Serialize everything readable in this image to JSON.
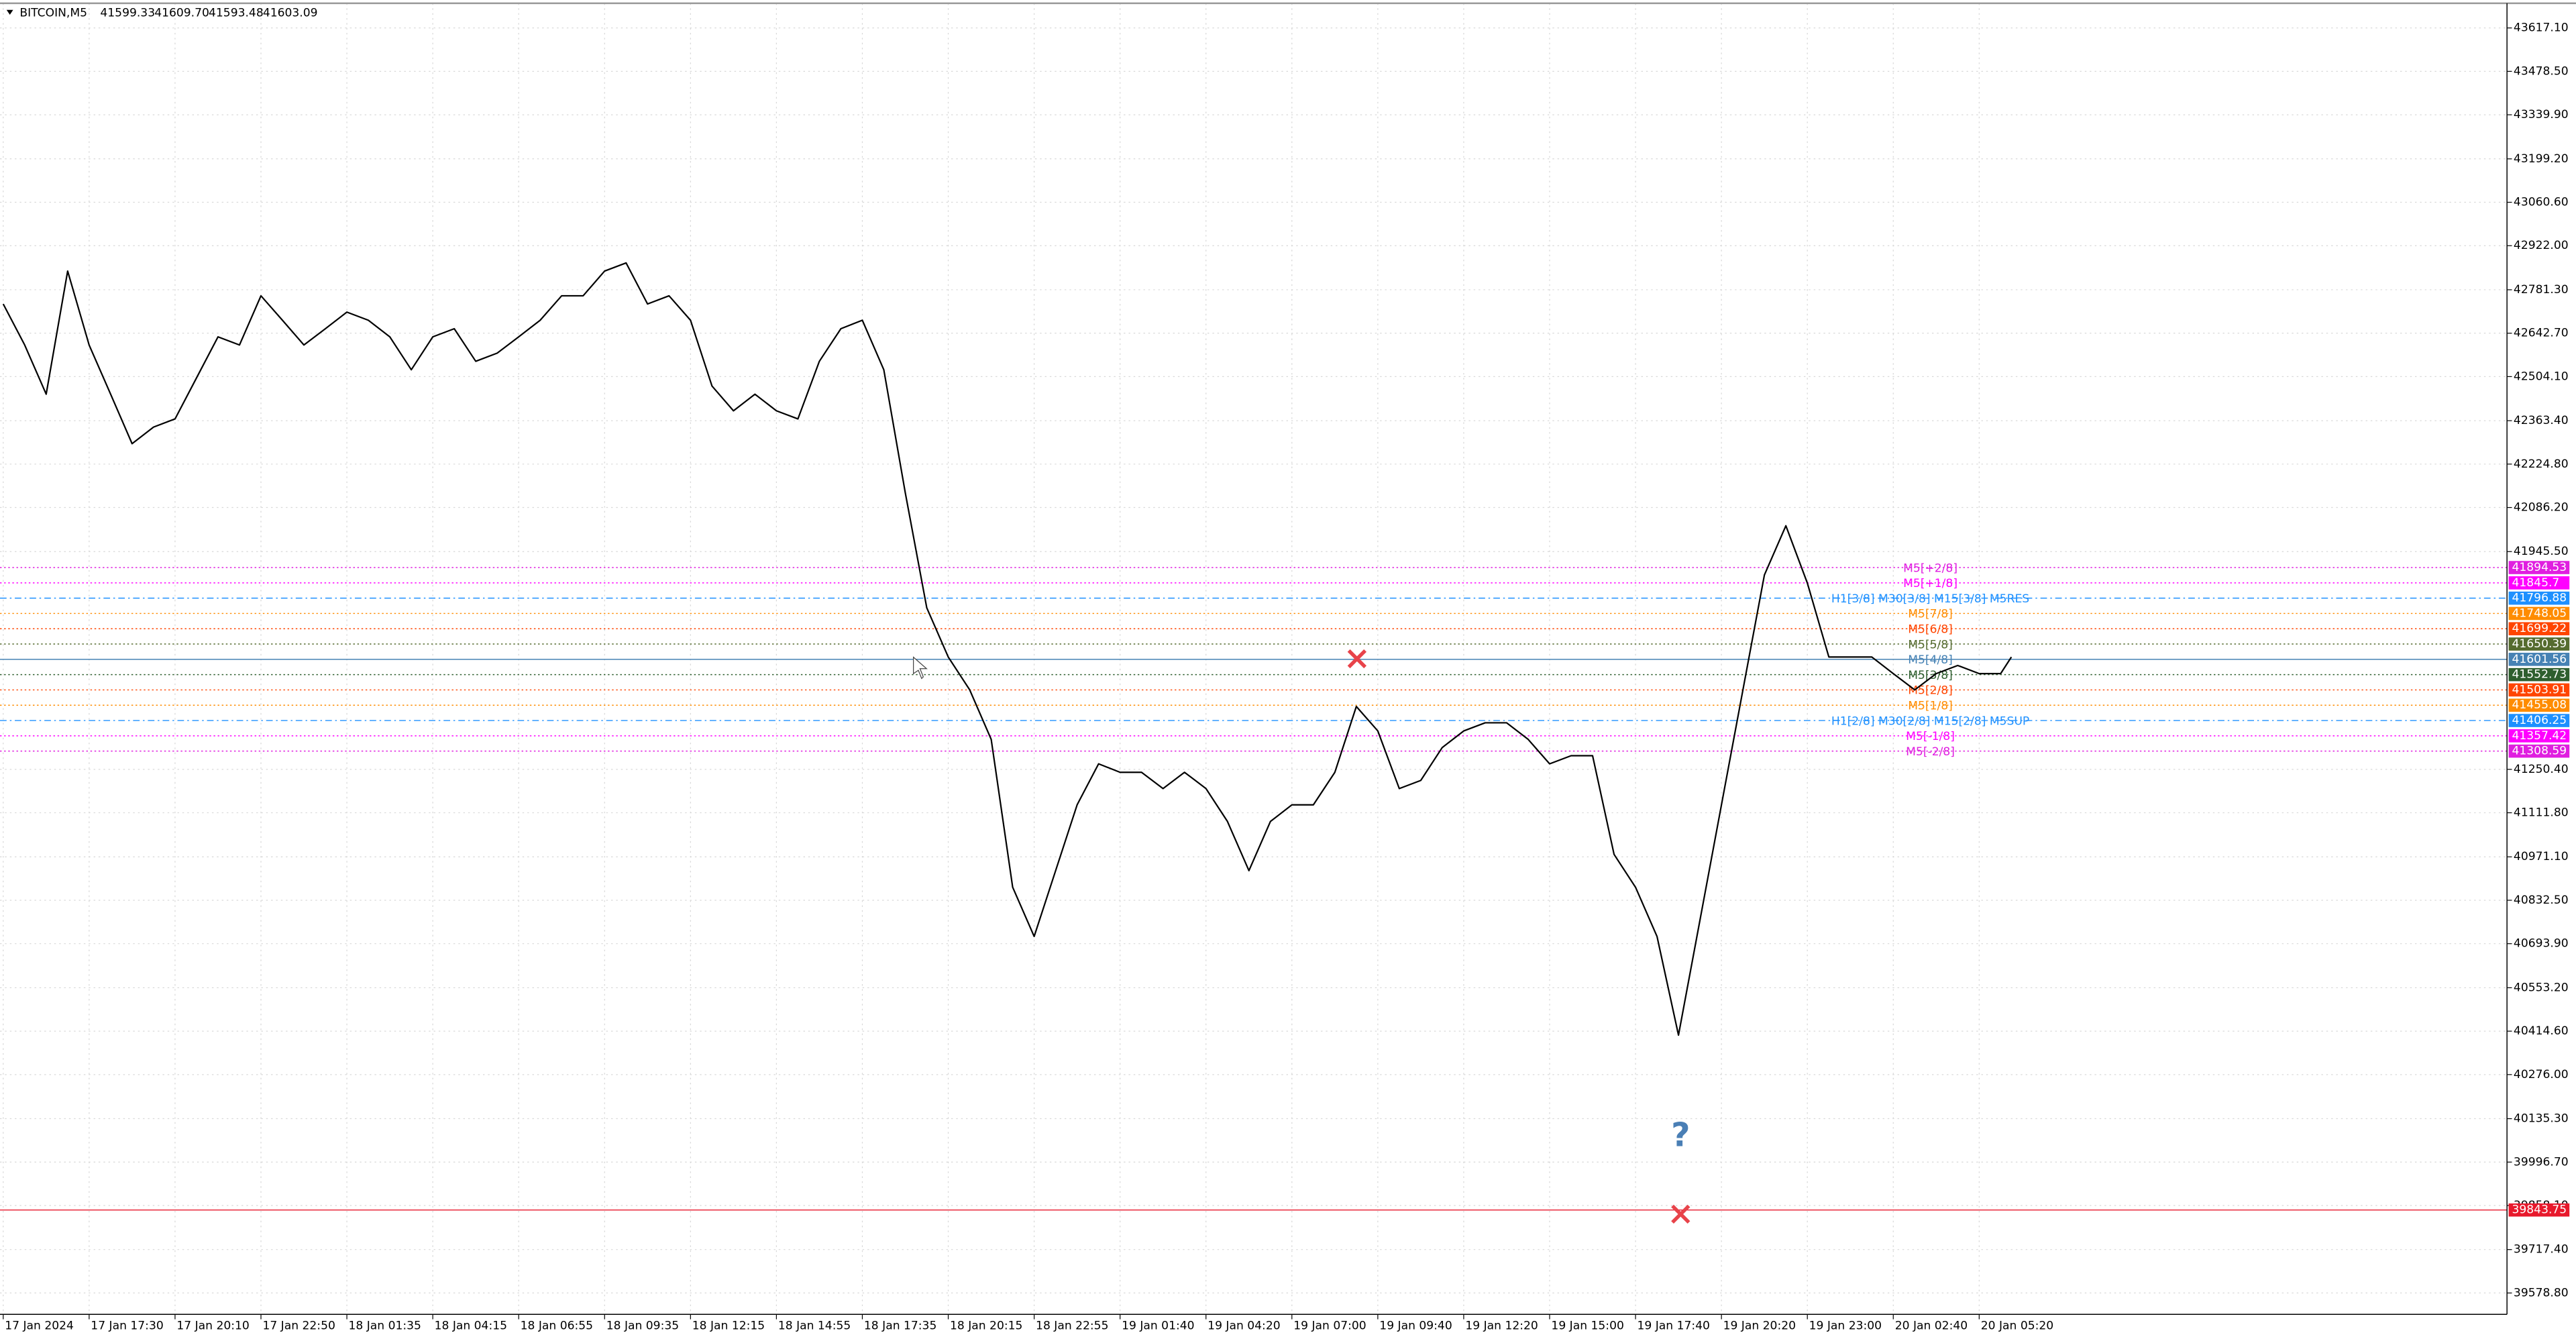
{
  "chart_data": {
    "type": "line",
    "symbol": "BITCOIN,M5",
    "ohlc": [
      "41599.33",
      "41609.70",
      "41593.48",
      "41603.09"
    ],
    "color": "#000000",
    "grid": true,
    "xlim": [
      -1.2,
      932.6
    ],
    "ylim": [
      39510.6,
      43695.8
    ],
    "xticks": [
      {
        "value": 0,
        "label": "17 Jan 2024"
      },
      {
        "value": 32,
        "label": "17 Jan 17:30"
      },
      {
        "value": 64,
        "label": "17 Jan 20:10"
      },
      {
        "value": 96,
        "label": "17 Jan 22:50"
      },
      {
        "value": 128,
        "label": "18 Jan 01:35"
      },
      {
        "value": 160,
        "label": "18 Jan 04:15"
      },
      {
        "value": 192,
        "label": "18 Jan 06:55"
      },
      {
        "value": 224,
        "label": "18 Jan 09:35"
      },
      {
        "value": 256,
        "label": "18 Jan 12:15"
      },
      {
        "value": 288,
        "label": "18 Jan 14:55"
      },
      {
        "value": 320,
        "label": "18 Jan 17:35"
      },
      {
        "value": 352,
        "label": "18 Jan 20:15"
      },
      {
        "value": 384,
        "label": "18 Jan 22:55"
      },
      {
        "value": 416,
        "label": "19 Jan 01:40"
      },
      {
        "value": 448,
        "label": "19 Jan 04:20"
      },
      {
        "value": 480,
        "label": "19 Jan 07:00"
      },
      {
        "value": 512,
        "label": "19 Jan 09:40"
      },
      {
        "value": 544,
        "label": "19 Jan 12:20"
      },
      {
        "value": 576,
        "label": "19 Jan 15:00"
      },
      {
        "value": 608,
        "label": "19 Jan 17:40"
      },
      {
        "value": 640,
        "label": "19 Jan 20:20"
      },
      {
        "value": 672,
        "label": "19 Jan 23:00"
      },
      {
        "value": 704,
        "label": "20 Jan 02:40"
      },
      {
        "value": 736,
        "label": "20 Jan 05:20"
      }
    ],
    "yticks": [
      {
        "value": 43617.1,
        "label": "43617.10"
      },
      {
        "value": 43478.5,
        "label": "43478.50"
      },
      {
        "value": 43339.9,
        "label": "43339.90"
      },
      {
        "value": 43199.2,
        "label": "43199.20"
      },
      {
        "value": 43060.6,
        "label": "43060.60"
      },
      {
        "value": 42922,
        "label": "42922.00"
      },
      {
        "value": 42781.3,
        "label": "42781.30"
      },
      {
        "value": 42642.7,
        "label": "42642.70"
      },
      {
        "value": 42504.1,
        "label": "42504.10"
      },
      {
        "value": 42363.4,
        "label": "42363.40"
      },
      {
        "value": 42224.8,
        "label": "42224.80"
      },
      {
        "value": 42086.2,
        "label": "42086.20"
      },
      {
        "value": 41945.5,
        "label": "41945.50"
      },
      {
        "value": 41250.4,
        "label": "41250.40"
      },
      {
        "value": 41111.8,
        "label": "41111.80"
      },
      {
        "value": 40971.1,
        "label": "40971.10"
      },
      {
        "value": 40832.5,
        "label": "40832.50"
      },
      {
        "value": 40693.9,
        "label": "40693.90"
      },
      {
        "value": 40553.2,
        "label": "40553.20"
      },
      {
        "value": 40414.6,
        "label": "40414.60"
      },
      {
        "value": 40276,
        "label": "40276.00"
      },
      {
        "value": 40135.3,
        "label": "40135.30"
      },
      {
        "value": 39996.7,
        "label": "39996.70"
      },
      {
        "value": 39858.1,
        "label": "39858.10"
      },
      {
        "value": 39717.4,
        "label": "39717.40"
      },
      {
        "value": 39578.8,
        "label": "39578.80"
      }
    ],
    "x": [
      0,
      8,
      16,
      24,
      32,
      40,
      48,
      56,
      64,
      72,
      80,
      88,
      96,
      104,
      112,
      120,
      128,
      136,
      144,
      152,
      160,
      168,
      176,
      184,
      192,
      200,
      208,
      216,
      224,
      232,
      240,
      248,
      256,
      264,
      272,
      280,
      288,
      296,
      304,
      312,
      320,
      328,
      336,
      344,
      352,
      360,
      368,
      376,
      384,
      392,
      400,
      408,
      416,
      424,
      432,
      440,
      448,
      456,
      464,
      472,
      480,
      488,
      496,
      504,
      512,
      520,
      528,
      536,
      544,
      552,
      560,
      568,
      576,
      584,
      592,
      600,
      608,
      616,
      624,
      632,
      640,
      648,
      656,
      664,
      672,
      680,
      688,
      696,
      704,
      712,
      720,
      728,
      736,
      744,
      748
    ],
    "values": [
      42736,
      42605,
      42448,
      42841,
      42605,
      42448,
      42290,
      42343,
      42369,
      42500,
      42631,
      42605,
      42762,
      42684,
      42605,
      42657,
      42710,
      42684,
      42631,
      42526,
      42631,
      42657,
      42553,
      42579,
      42631,
      42684,
      42762,
      42762,
      42841,
      42867,
      42736,
      42762,
      42684,
      42474,
      42395,
      42448,
      42395,
      42369,
      42553,
      42657,
      42684,
      42526,
      42133,
      41766,
      41609,
      41504,
      41346,
      40874,
      40717,
      40927,
      41137,
      41268,
      41241,
      41241,
      41189,
      41241,
      41189,
      41084,
      40927,
      41084,
      41137,
      41137,
      41241,
      41451,
      41373,
      41189,
      41215,
      41320,
      41373,
      41399,
      41399,
      41346,
      41268,
      41294,
      41294,
      40979,
      40874,
      40717,
      40402,
      40769,
      41137,
      41504,
      41871,
      42028,
      41845,
      41609,
      41609,
      41609,
      41556,
      41504,
      41556,
      41582,
      41556,
      41556,
      41609
    ],
    "levels": [
      {
        "name": "M5[+2/8]",
        "value": 41894.53,
        "color": "#e01ee0",
        "style": "dot"
      },
      {
        "name": "M5[+1/8]",
        "value": 41845.7,
        "color": "#ff00ff",
        "style": "dot"
      },
      {
        "name": "H1[3/8] M30[3/8] M15[3/8] M5RES",
        "value": 41796.88,
        "color": "#1e90ff",
        "style": "dash-dot"
      },
      {
        "name": "M5[7/8]",
        "value": 41748.05,
        "color": "#ff8c00",
        "style": "dot"
      },
      {
        "name": "M5[6/8]",
        "value": 41699.22,
        "color": "#ff4500",
        "style": "dot"
      },
      {
        "name": "M5[5/8]",
        "value": 41650.39,
        "color": "#556b2f",
        "style": "dot"
      },
      {
        "name": "M5[4/8]",
        "value": 41601.56,
        "color": "#4682b4",
        "style": "solid"
      },
      {
        "name": "M5[3/8]",
        "value": 41552.73,
        "color": "#2e5e2e",
        "style": "dot"
      },
      {
        "name": "M5[2/8]",
        "value": 41503.91,
        "color": "#ff4500",
        "style": "dot"
      },
      {
        "name": "M5[1/8]",
        "value": 41455.08,
        "color": "#ff8c00",
        "style": "dot"
      },
      {
        "name": "H1[2/8] M30[2/8] M15[2/8] M5SUP",
        "value": 41406.25,
        "color": "#1e90ff",
        "style": "dash-dot"
      },
      {
        "name": "M5[-1/8]",
        "value": 41357.42,
        "color": "#ff00ff",
        "style": "dot"
      },
      {
        "name": "M5[-2/8]",
        "value": 41308.59,
        "color": "#e01ee0",
        "style": "dot"
      }
    ],
    "stop_level": {
      "value": 39843.75,
      "color": "#e8192c"
    }
  }
}
